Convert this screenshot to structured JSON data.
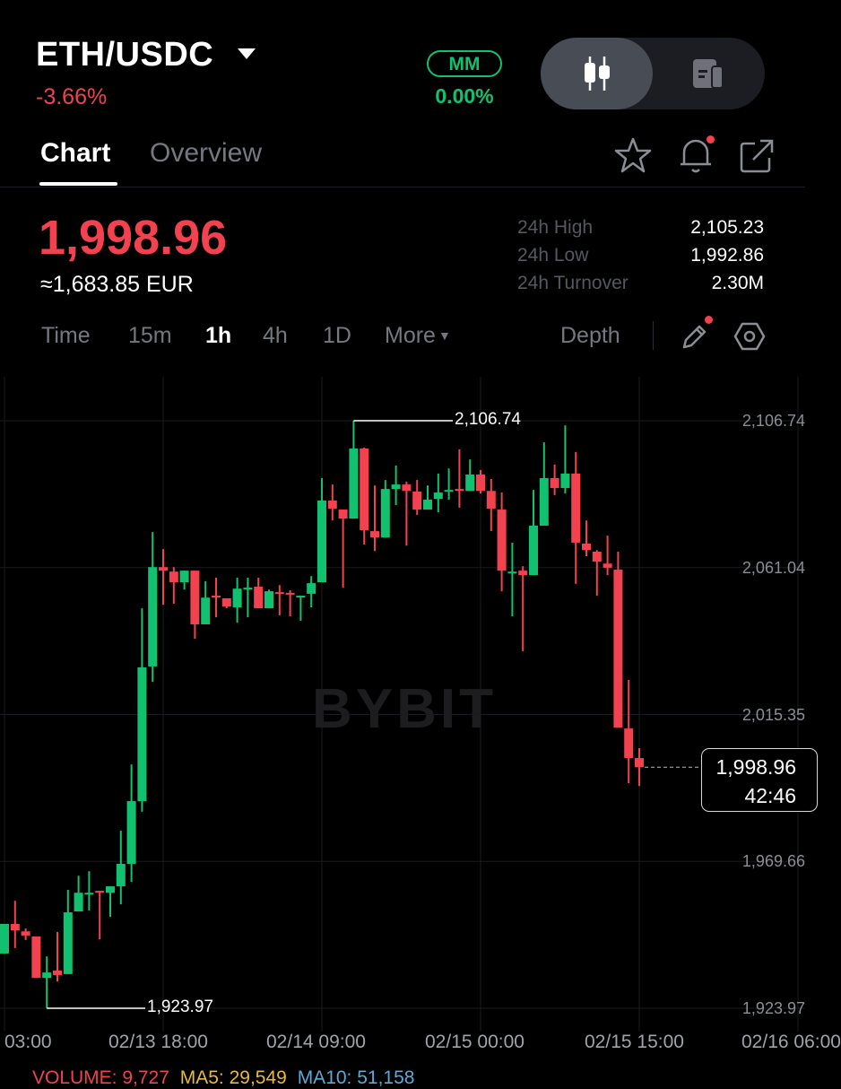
{
  "header": {
    "pair": "ETH/USDC",
    "change_pct": "-3.66%",
    "mm_badge": "MM",
    "mm_value": "0.00%"
  },
  "tabs": [
    {
      "label": "Chart",
      "active": true
    },
    {
      "label": "Overview",
      "active": false
    }
  ],
  "ticker": {
    "last_price": "1,998.96",
    "fiat_equiv": "≈1,683.85 EUR",
    "stats": [
      {
        "label": "24h High",
        "value": "2,105.23"
      },
      {
        "label": "24h Low",
        "value": "1,992.86"
      },
      {
        "label": "24h Turnover",
        "value": "2.30M"
      }
    ]
  },
  "toolbar": {
    "timeframes": [
      {
        "label": "Time",
        "active": false
      },
      {
        "label": "15m",
        "active": false
      },
      {
        "label": "1h",
        "active": true
      },
      {
        "label": "4h",
        "active": false
      },
      {
        "label": "1D",
        "active": false
      }
    ],
    "more": "More",
    "depth": "Depth"
  },
  "colors": {
    "up": "#12c16f",
    "down": "#f2414f",
    "background": "#000000",
    "grid": "#1a1b20"
  },
  "watermark": "BYBIT",
  "chart_data": {
    "type": "candlestick",
    "interval": "1h",
    "first_candle": "02/13 03:00",
    "ohlc": [
      [
        1941.0,
        1950.2,
        1941.0,
        1950.2
      ],
      [
        1950.2,
        1957.4,
        1942.7,
        1948.2
      ],
      [
        1947.9,
        1948.8,
        1945.2,
        1946.6
      ],
      [
        1946.3,
        1946.3,
        1933.4,
        1933.4
      ],
      [
        1933.4,
        1940.1,
        1923.97,
        1935.1
      ],
      [
        1935.7,
        1947.7,
        1932.3,
        1934.3
      ],
      [
        1934.6,
        1960.8,
        1934.6,
        1953.8
      ],
      [
        1954.1,
        1965.2,
        1954.1,
        1959.9
      ],
      [
        1959.7,
        1966.6,
        1954.4,
        1959.9
      ],
      [
        1960.5,
        1960.5,
        1945.4,
        1960.2
      ],
      [
        1959.9,
        1961.9,
        1952.4,
        1961.9
      ],
      [
        1961.9,
        1979.2,
        1956.3,
        1968.9
      ],
      [
        1968.9,
        1999.8,
        1963.3,
        1988.4
      ],
      [
        1988.4,
        2048.4,
        1985.1,
        2030.0
      ],
      [
        2030.3,
        2072.1,
        2025.5,
        2061.2
      ],
      [
        2061.2,
        2066.8,
        2049.5,
        2060.1
      ],
      [
        2059.8,
        2061.2,
        2049.8,
        2056.5
      ],
      [
        2056.5,
        2060.1,
        2054.2,
        2060.1
      ],
      [
        2060.1,
        2060.1,
        2038.9,
        2043.4
      ],
      [
        2043.4,
        2056.8,
        2043.4,
        2051.7
      ],
      [
        2052.3,
        2057.9,
        2045.6,
        2052.0
      ],
      [
        2051.5,
        2051.5,
        2048.4,
        2048.9
      ],
      [
        2048.7,
        2057.9,
        2043.9,
        2054.5
      ],
      [
        2054.5,
        2057.9,
        2045.6,
        2054.8
      ],
      [
        2055.1,
        2057.9,
        2048.4,
        2048.4
      ],
      [
        2048.4,
        2054.2,
        2048.4,
        2053.7
      ],
      [
        2053.4,
        2055.6,
        2046.2,
        2053.2
      ],
      [
        2053.2,
        2054.0,
        2045.9,
        2052.9
      ],
      [
        2052.0,
        2052.3,
        2044.5,
        2052.3
      ],
      [
        2052.9,
        2058.4,
        2048.7,
        2056.2
      ],
      [
        2056.5,
        2088.9,
        2056.5,
        2081.9
      ],
      [
        2081.9,
        2086.9,
        2075.7,
        2079.4
      ],
      [
        2079.1,
        2079.1,
        2054.8,
        2076.3
      ],
      [
        2076.3,
        2106.74,
        2076.3,
        2098.1
      ],
      [
        2098.1,
        2098.4,
        2068.2,
        2072.7
      ],
      [
        2072.4,
        2086.6,
        2066.2,
        2070.4
      ],
      [
        2070.4,
        2088.3,
        2070.4,
        2085.5
      ],
      [
        2085.5,
        2092.8,
        2080.5,
        2086.9
      ],
      [
        2086.9,
        2087.8,
        2067.9,
        2084.9
      ],
      [
        2084.7,
        2088.3,
        2077.4,
        2079.1
      ],
      [
        2079.1,
        2086.6,
        2079.1,
        2082.2
      ],
      [
        2082.4,
        2090.3,
        2078.3,
        2084.4
      ],
      [
        2084.9,
        2091.9,
        2082.2,
        2085.2
      ],
      [
        2085.5,
        2097.8,
        2079.7,
        2085.2
      ],
      [
        2084.9,
        2094.7,
        2084.9,
        2090.0
      ],
      [
        2090.0,
        2091.4,
        2084.1,
        2084.9
      ],
      [
        2084.9,
        2088.6,
        2072.4,
        2079.4
      ],
      [
        2079.1,
        2084.4,
        2053.7,
        2060.1
      ],
      [
        2059.5,
        2068.8,
        2045.9,
        2059.8
      ],
      [
        2060.1,
        2061.5,
        2035.0,
        2058.7
      ],
      [
        2058.7,
        2085.2,
        2058.7,
        2074.1
      ],
      [
        2074.1,
        2100.0,
        2074.1,
        2088.9
      ],
      [
        2088.9,
        2093.1,
        2083.6,
        2085.8
      ],
      [
        2085.8,
        2105.3,
        2084.1,
        2090.3
      ],
      [
        2090.3,
        2097.0,
        2056.0,
        2068.8
      ],
      [
        2068.5,
        2075.7,
        2064.6,
        2066.5
      ],
      [
        2066.0,
        2066.5,
        2052.3,
        2062.9
      ],
      [
        2062.3,
        2071.0,
        2058.7,
        2061.0
      ],
      [
        2060.4,
        2066.0,
        2011.3,
        2011.3
      ],
      [
        2011.0,
        2026.1,
        1994.0,
        2001.8
      ],
      [
        2001.8,
        2004.9,
        1993.1,
        1998.96
      ]
    ],
    "y_ticks": [
      "2,106.74",
      "2,061.04",
      "2,015.35",
      "1,969.66",
      "1,923.97"
    ],
    "y_tick_values": [
      2106.74,
      2061.04,
      2015.35,
      1969.66,
      1923.97
    ],
    "x_ticks": [
      "03:00",
      "02/13 18:00",
      "02/14 09:00",
      "02/15 00:00",
      "02/15 15:00",
      "02/16 06:00"
    ],
    "x_tick_candle_index": [
      0,
      15,
      30,
      45,
      60,
      75
    ],
    "high_marker": {
      "label": "2,106.74",
      "value": 2106.74,
      "candle_index": 33
    },
    "low_marker": {
      "label": "1,923.97",
      "value": 1923.97,
      "candle_index": 4
    },
    "current_price": {
      "label": "1,998.96",
      "value": 1998.96,
      "countdown": "42:46"
    },
    "grid": true
  },
  "volume_bar": {
    "volume": "VOLUME: 9,727",
    "ma5": "MA5: 29,549",
    "ma10": "MA10: 51,158"
  }
}
